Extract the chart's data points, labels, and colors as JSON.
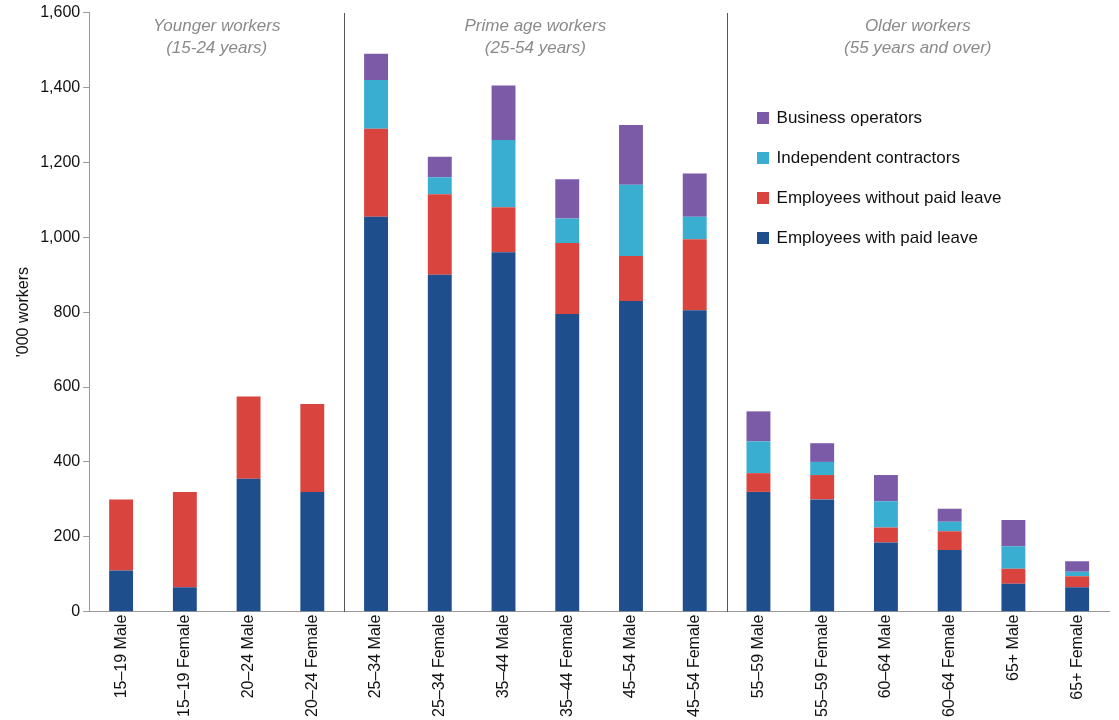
{
  "chart_data": {
    "type": "bar",
    "stacked": true,
    "ylabel": "'000 workers",
    "categories": [
      "15–19 Male",
      "15–19 Female",
      "20–24 Male",
      "20–24 Female",
      "25–34 Male",
      "25–34 Female",
      "35–44 Male",
      "35–44 Female",
      "45–54 Male",
      "45–54 Female",
      "55–59 Male",
      "55–59 Female",
      "60–64 Male",
      "60–64 Female",
      "65+ Male",
      "65+ Female"
    ],
    "series": [
      {
        "name": "Employees with paid leave",
        "color": "#1f4e8c",
        "values": [
          110,
          65,
          355,
          320,
          1055,
          900,
          960,
          795,
          830,
          805,
          320,
          300,
          185,
          165,
          75,
          65
        ]
      },
      {
        "name": "Employees without paid leave",
        "color": "#d9443f",
        "values": [
          190,
          255,
          220,
          235,
          235,
          215,
          120,
          190,
          120,
          190,
          50,
          65,
          40,
          50,
          40,
          30
        ]
      },
      {
        "name": "Independent contractors",
        "color": "#3aaed0",
        "values": [
          null,
          null,
          null,
          null,
          130,
          45,
          180,
          65,
          190,
          60,
          85,
          35,
          70,
          25,
          60,
          12
        ]
      },
      {
        "name": "Business operators",
        "color": "#7b5ba8",
        "values": [
          null,
          null,
          null,
          null,
          70,
          55,
          145,
          105,
          160,
          115,
          80,
          50,
          70,
          35,
          70,
          28
        ]
      }
    ],
    "ylim": [
      0,
      1600
    ],
    "yticks": [
      0,
      200,
      400,
      600,
      800,
      {
        "value": 1000,
        "label": "1,000"
      },
      {
        "value": 1200,
        "label": "1,200"
      },
      {
        "value": 1400,
        "label": "1,400"
      },
      {
        "value": 1600,
        "label": "1,600"
      }
    ],
    "grid": false,
    "legend": "top right",
    "annotations": [
      "Younger workers\n(15-24 years)",
      "Prime age workers\n(25-54 years)",
      "Older workers\n(55 years and over)"
    ]
  }
}
